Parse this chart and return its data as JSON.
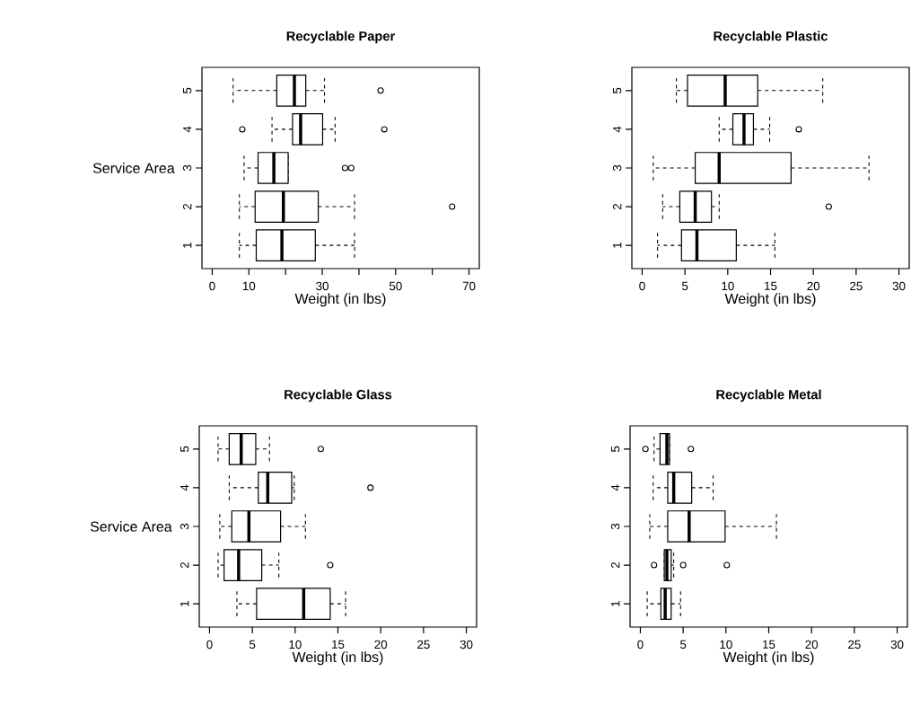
{
  "chart_data": [
    {
      "type": "box",
      "title": "Recyclable Paper",
      "xlabel": "Weight (in lbs)",
      "ylabel": "Service Area",
      "orientation": "horizontal",
      "categories": [
        "5",
        "4",
        "3",
        "2",
        "1"
      ],
      "boxes": [
        {
          "low": 5.7,
          "q1": 17.6,
          "median": 22.4,
          "q3": 25.5,
          "high": 30.6,
          "outliers": [
            45.9
          ]
        },
        {
          "low": 16.3,
          "q1": 21.9,
          "median": 24.1,
          "q3": 30.1,
          "high": 33.5,
          "outliers": [
            8.2,
            46.9
          ]
        },
        {
          "low": 8.7,
          "q1": 12.5,
          "median": 16.8,
          "q3": 20.7,
          "high": 20.7,
          "outliers": [
            36.2,
            37.9
          ]
        },
        {
          "low": 7.4,
          "q1": 11.7,
          "median": 19.4,
          "q3": 28.9,
          "high": 38.8,
          "outliers": [
            65.4
          ]
        },
        {
          "low": 7.4,
          "q1": 12.0,
          "median": 19.0,
          "q3": 28.1,
          "high": 38.8
        }
      ],
      "xlim": [
        -2.8,
        72.8
      ],
      "xticks": [
        0,
        10,
        {
          "value": 20,
          "label": null
        },
        30,
        {
          "value": 40,
          "label": null
        },
        50,
        {
          "value": 60,
          "label": null
        },
        70
      ]
    },
    {
      "type": "box",
      "title": "Recyclable Plastic",
      "xlabel": "Weight (in lbs)",
      "orientation": "horizontal",
      "categories": [
        "5",
        "4",
        "3",
        "2",
        "1"
      ],
      "boxes": [
        {
          "low": 4.0,
          "q1": 5.3,
          "median": 9.7,
          "q3": 13.5,
          "high": 21.1
        },
        {
          "low": 9.0,
          "q1": 10.6,
          "median": 11.9,
          "q3": 13.0,
          "high": 14.9,
          "outliers": [
            18.3
          ]
        },
        {
          "low": 1.3,
          "q1": 6.2,
          "median": 9.0,
          "q3": 17.4,
          "high": 26.5
        },
        {
          "low": 2.4,
          "q1": 4.4,
          "median": 6.2,
          "q3": 8.1,
          "high": 9.0,
          "outliers": [
            21.8
          ]
        },
        {
          "low": 1.8,
          "q1": 4.6,
          "median": 6.4,
          "q3": 11.0,
          "high": 15.5
        }
      ],
      "xlim": [
        -1.2,
        31.2
      ],
      "xticks": [
        0,
        5,
        10,
        15,
        20,
        25,
        30
      ]
    },
    {
      "type": "box",
      "title": "Recyclable Glass",
      "xlabel": "Weight (in lbs)",
      "ylabel": "Service Area",
      "orientation": "horizontal",
      "categories": [
        "5",
        "4",
        "3",
        "2",
        "1"
      ],
      "boxes": [
        {
          "low": 1.0,
          "q1": 2.3,
          "median": 3.7,
          "q3": 5.4,
          "high": 7.0,
          "outliers": [
            13.0
          ]
        },
        {
          "low": 2.3,
          "q1": 5.7,
          "median": 6.8,
          "q3": 9.6,
          "high": 9.9,
          "outliers": [
            18.8
          ]
        },
        {
          "low": 1.2,
          "q1": 2.6,
          "median": 4.6,
          "q3": 8.3,
          "high": 11.2
        },
        {
          "low": 1.0,
          "q1": 1.7,
          "median": 3.4,
          "q3": 6.1,
          "high": 8.1,
          "outliers": [
            14.1
          ]
        },
        {
          "low": 3.2,
          "q1": 5.5,
          "median": 11.0,
          "q3": 14.1,
          "high": 15.9
        }
      ],
      "xlim": [
        -1.2,
        31.2
      ],
      "xticks": [
        0,
        5,
        10,
        15,
        20,
        25,
        30
      ]
    },
    {
      "type": "box",
      "title": "Recyclable Metal",
      "xlabel": "Weight (in lbs)",
      "orientation": "horizontal",
      "categories": [
        "5",
        "4",
        "3",
        "2",
        "1"
      ],
      "boxes": [
        {
          "low": 1.6,
          "q1": 2.3,
          "median": 3.1,
          "q3": 3.4,
          "high": 3.4,
          "outliers": [
            0.6,
            5.9
          ]
        },
        {
          "low": 1.5,
          "q1": 3.2,
          "median": 3.9,
          "q3": 6.0,
          "high": 8.5
        },
        {
          "low": 1.1,
          "q1": 3.2,
          "median": 5.7,
          "q3": 9.9,
          "high": 15.9
        },
        {
          "low": 2.8,
          "q1": 2.8,
          "median": 3.1,
          "q3": 3.6,
          "high": 3.9,
          "outliers": [
            1.6,
            5.0,
            10.1
          ]
        },
        {
          "low": 0.8,
          "q1": 2.4,
          "median": 2.9,
          "q3": 3.6,
          "high": 4.7
        }
      ],
      "xlim": [
        -1.2,
        31.2
      ],
      "xticks": [
        0,
        5,
        10,
        15,
        20,
        25,
        30
      ]
    }
  ]
}
